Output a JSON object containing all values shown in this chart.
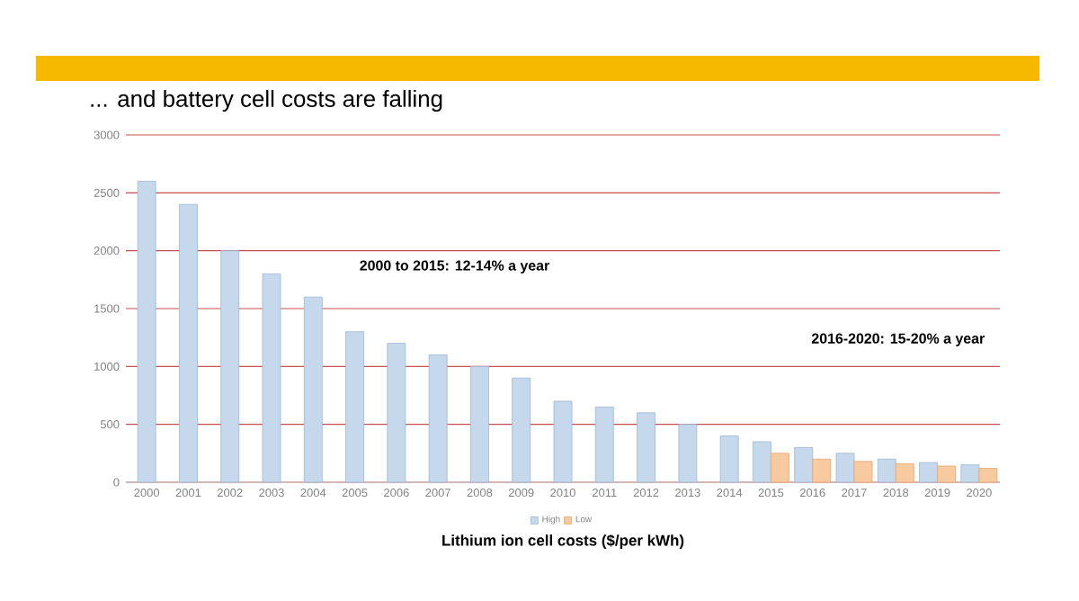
{
  "chart_data": {
    "type": "bar",
    "title": "... and battery cell costs are falling",
    "xlabel": "Lithium ion cell costs ($/per kWh)",
    "categories": [
      "2000",
      "2001",
      "2002",
      "2003",
      "2004",
      "2005",
      "2006",
      "2007",
      "2008",
      "2009",
      "2010",
      "2011",
      "2012",
      "2013",
      "2014",
      "2015",
      "2016",
      "2017",
      "2018",
      "2019",
      "2020"
    ],
    "series": [
      {
        "name": "High",
        "color": "#c6d9ec",
        "values": [
          2600,
          2400,
          2000,
          1800,
          1600,
          1300,
          1200,
          1100,
          1000,
          900,
          700,
          650,
          600,
          500,
          400,
          350,
          300,
          250,
          200,
          170,
          150
        ]
      },
      {
        "name": "Low",
        "color": "#f8caa0",
        "values": [
          null,
          null,
          null,
          null,
          null,
          null,
          null,
          null,
          null,
          null,
          null,
          null,
          null,
          null,
          null,
          250,
          200,
          180,
          160,
          140,
          120
        ]
      }
    ],
    "ylim": [
      0,
      3000
    ],
    "yticks": [
      0,
      500,
      1000,
      1500,
      2000,
      2500,
      3000
    ],
    "grid": "y",
    "legend": "bottom",
    "annotations": [
      "2000 to 2015: 12-14% a year",
      "2016-2020: 15-20% a year"
    ]
  }
}
